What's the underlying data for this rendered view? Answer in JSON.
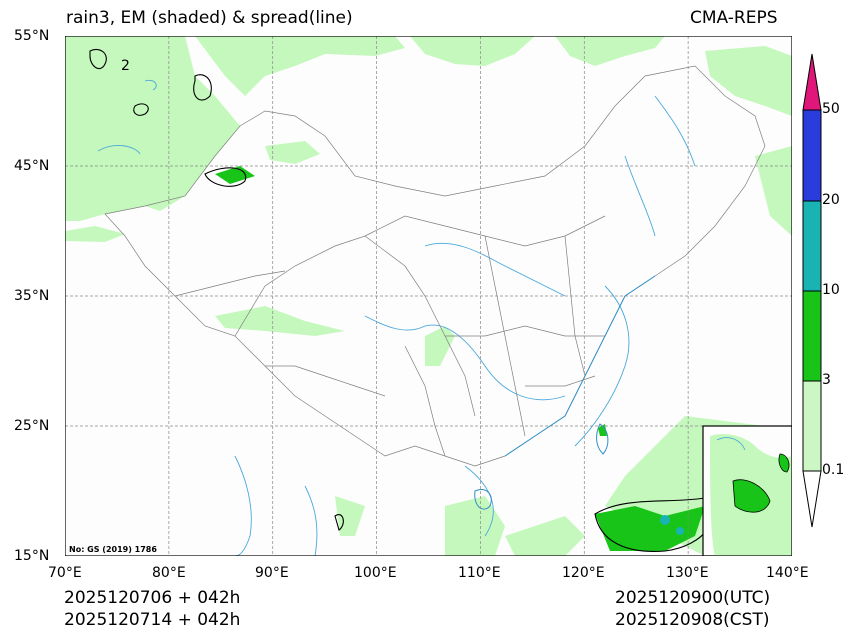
{
  "header": {
    "title": "rain3, EM (shaded) & spread(line)",
    "source": "CMA-REPS"
  },
  "axes": {
    "lat_labels": [
      "55°N",
      "45°N",
      "35°N",
      "25°N",
      "15°N"
    ],
    "lon_labels": [
      "70°E",
      "80°E",
      "90°E",
      "100°E",
      "110°E",
      "120°E",
      "130°E",
      "140°E"
    ]
  },
  "footer": {
    "init_utc": "2025120706  +  042h",
    "init_cst": "2025120714  +  042h",
    "valid_utc": "2025120900(UTC)",
    "valid_cst": "2025120908(CST)"
  },
  "map_note": "No: GS (2019) 1786",
  "colorbar": {
    "levels": [
      "0.1",
      "3",
      "10",
      "20",
      "50"
    ],
    "colors": [
      "#ffffff",
      "#ccf7c4",
      "#19c419",
      "#19b3b3",
      "#2a3cdc",
      "#e0167a"
    ]
  },
  "contour_label": "2"
}
